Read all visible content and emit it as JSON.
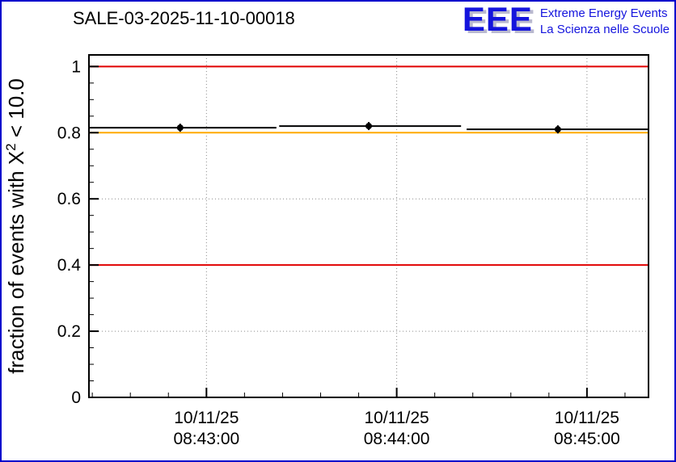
{
  "header": {
    "title": "SALE-03-2025-11-10-00018",
    "logo": {
      "acronym": "EEE",
      "line1": "Extreme Energy Events",
      "line2": "La Scienza nelle Scuole"
    }
  },
  "colors": {
    "border": "#0000cc",
    "logo_blue": "#1414dd",
    "logo_shadow": "#b9b9cf",
    "grid": "#8a8a8a",
    "red": "#e10000",
    "orange": "#ffaa00",
    "data": "#000000",
    "frame": "#000000",
    "text": "#000000"
  },
  "chart_data": {
    "type": "line",
    "title": "SALE-03-2025-11-10-00018",
    "ylabel": "fraction of events with X^2 < 10.0",
    "ylabel_parts": {
      "pre": "fraction of events with X",
      "sup": "2",
      "post": " < 10.0"
    },
    "ylim": [
      0,
      1.035
    ],
    "y_ticks": [
      0,
      0.2,
      0.4,
      0.6,
      0.8,
      1
    ],
    "y_tick_labels": [
      "0",
      "0.2",
      "0.4",
      "0.6",
      "0.8",
      "1"
    ],
    "x_ticks": [
      {
        "pos": 0.21,
        "date": "10/11/25",
        "time": "08:43:00"
      },
      {
        "pos": 0.55,
        "date": "10/11/25",
        "time": "08:44:00"
      },
      {
        "pos": 0.89,
        "date": "10/11/25",
        "time": "08:45:00"
      }
    ],
    "x_minor_step": 0.068,
    "grid": true,
    "ref_lines": [
      {
        "y": 1.0,
        "color_key": "red"
      },
      {
        "y": 0.8,
        "color_key": "orange"
      },
      {
        "y": 0.4,
        "color_key": "red"
      }
    ],
    "bins": [
      {
        "start": 0.0,
        "end": 0.335,
        "center": 0.163,
        "value": 0.815
      },
      {
        "start": 0.34,
        "end": 0.665,
        "center": 0.5,
        "value": 0.82
      },
      {
        "start": 0.675,
        "end": 1.0,
        "center": 0.838,
        "value": 0.81
      }
    ]
  }
}
